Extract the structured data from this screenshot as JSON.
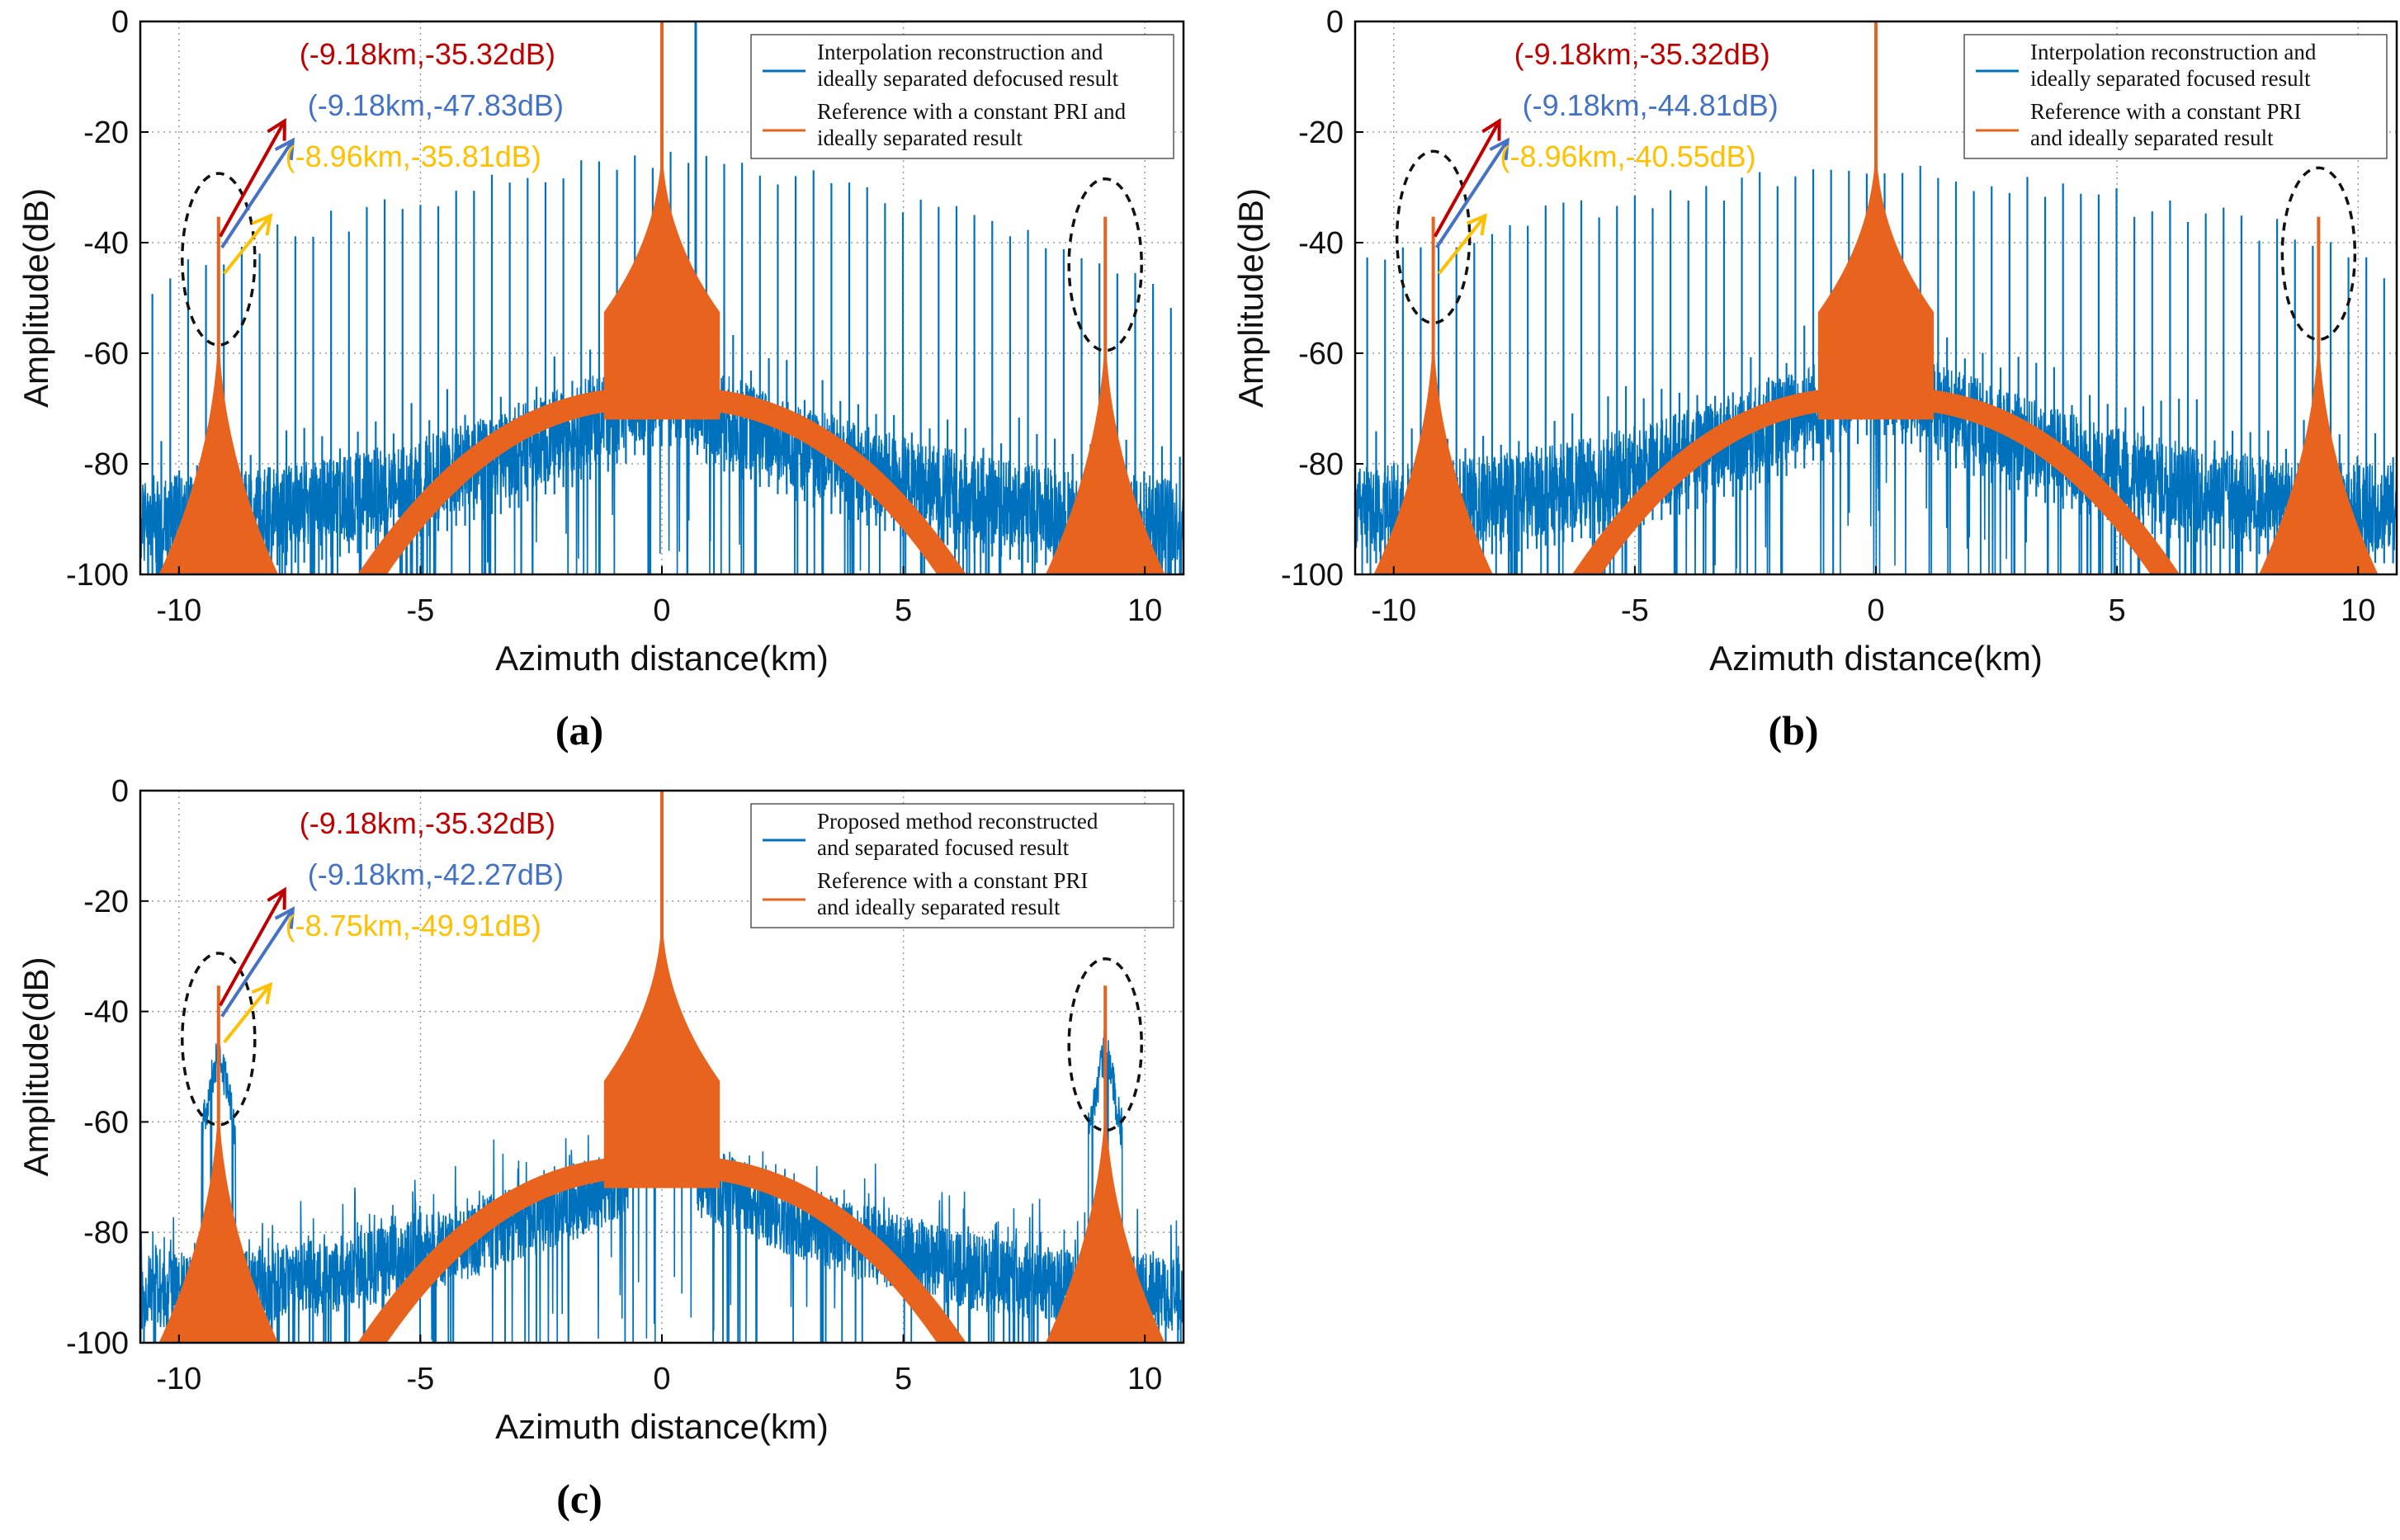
{
  "figure": {
    "background": "#ffffff",
    "colors": {
      "interp": "#0072BD",
      "ref": "#E8641E",
      "red_arrow": "#C00000",
      "blue_arrow": "#4472C4",
      "yellow_arrow": "#FFC000",
      "grid": "#9a9a9a",
      "ellipse": "#111111"
    }
  },
  "chart_data": [
    {
      "id": "a",
      "type": "line",
      "caption": "(a)",
      "xlabel": "Azimuth distance(km)",
      "ylabel": "Amplitude(dB)",
      "xlim": [
        -10.8,
        10.8
      ],
      "ylim": [
        -100,
        0
      ],
      "xticks": [
        -10,
        -5,
        0,
        5,
        10
      ],
      "xtick_labels": [
        "-10",
        "-5",
        "0",
        "5",
        "10"
      ],
      "yticks": [
        0,
        -20,
        -40,
        -60,
        -80,
        -100
      ],
      "ytick_labels": [
        "0",
        "-20",
        "-40",
        "-60",
        "-80",
        "-100"
      ],
      "grid": true,
      "legend_position": "top-right",
      "series": [
        {
          "name": "Interpolation reconstruction and ideally separated defocused result",
          "legend_lines": [
            "Interpolation reconstruction and",
            "ideally separated defocused result"
          ],
          "color": "#0072BD",
          "style": "noisy-spurious",
          "floor_edge_db": -88,
          "floor_center_db": -64,
          "spur_spacing_km": 0.37,
          "spur_envelope_edge_db": -52,
          "spur_envelope_center_db": -22,
          "extra_spike_x_km": 0.7,
          "extra_spike_db": 0,
          "side_peak_db": -47.83
        },
        {
          "name": "Reference with a constant PRI and ideally separated result",
          "legend_lines": [
            "Reference with a constant PRI and",
            "ideally separated result"
          ],
          "color": "#E8641E",
          "main_peak": [
            0,
            0
          ],
          "side_peaks": [
            [
              -9.18,
              -35.32
            ],
            [
              9.18,
              -35.32
            ]
          ]
        }
      ],
      "annotations": [
        {
          "text": "(-9.18km,-35.32dB)",
          "color": "#C00000",
          "x": -9.18,
          "y": -35.32
        },
        {
          "text": "(-9.18km,-47.83dB)",
          "color": "#4472C4",
          "x": -9.18,
          "y": -47.83
        },
        {
          "text": "(-8.96km,-35.81dB)",
          "color": "#FFC000",
          "x": -8.96,
          "y": -35.81
        }
      ],
      "ellipses": [
        [
          -9.18,
          -43
        ],
        [
          9.18,
          -44
        ]
      ]
    },
    {
      "id": "b",
      "type": "line",
      "caption": "(b)",
      "xlabel": "Azimuth distance(km)",
      "ylabel": "Amplitude(dB)",
      "xlim": [
        -10.8,
        10.8
      ],
      "ylim": [
        -100,
        0
      ],
      "xticks": [
        -10,
        -5,
        0,
        5,
        10
      ],
      "xtick_labels": [
        "-10",
        "-5",
        "0",
        "5",
        "10"
      ],
      "yticks": [
        0,
        -20,
        -40,
        -60,
        -80,
        -100
      ],
      "ytick_labels": [
        "0",
        "-20",
        "-40",
        "-60",
        "-80",
        "-100"
      ],
      "grid": true,
      "legend_position": "top-right",
      "series": [
        {
          "name": "Interpolation reconstruction and ideally separated focused result",
          "legend_lines": [
            "Interpolation reconstruction and",
            "ideally separated focused result"
          ],
          "color": "#0072BD",
          "style": "noisy-spurious",
          "floor_edge_db": -86,
          "floor_center_db": -62,
          "spur_spacing_km": 0.37,
          "spur_envelope_edge_db": -46,
          "spur_envelope_center_db": -24,
          "side_peak_db": -44.81
        },
        {
          "name": "Reference with a constant PRI and ideally separated result",
          "legend_lines": [
            "Reference with a constant PRI",
            "and ideally separated result"
          ],
          "color": "#E8641E",
          "main_peak": [
            0,
            0
          ],
          "side_peaks": [
            [
              -9.18,
              -35.32
            ],
            [
              9.18,
              -35.32
            ]
          ]
        }
      ],
      "annotations": [
        {
          "text": "(-9.18km,-35.32dB)",
          "color": "#C00000",
          "x": -9.18,
          "y": -35.32
        },
        {
          "text": "(-9.18km,-44.81dB)",
          "color": "#4472C4",
          "x": -9.18,
          "y": -44.81
        },
        {
          "text": "(-8.96km,-40.55dB)",
          "color": "#FFC000",
          "x": -8.96,
          "y": -40.55
        }
      ],
      "ellipses": [
        [
          -9.18,
          -39
        ],
        [
          9.18,
          -42
        ]
      ]
    },
    {
      "id": "c",
      "type": "line",
      "caption": "(c)",
      "xlabel": "Azimuth distance(km)",
      "ylabel": "Amplitude(dB)",
      "xlim": [
        -10.8,
        10.8
      ],
      "ylim": [
        -100,
        0
      ],
      "xticks": [
        -10,
        -5,
        0,
        5,
        10
      ],
      "xtick_labels": [
        "-10",
        "-5",
        "0",
        "5",
        "10"
      ],
      "yticks": [
        0,
        -20,
        -40,
        -60,
        -80,
        -100
      ],
      "ytick_labels": [
        "0",
        "-20",
        "-40",
        "-60",
        "-80",
        "-100"
      ],
      "grid": true,
      "legend_position": "top-right",
      "series": [
        {
          "name": "Proposed method reconstructed and separated focused result",
          "legend_lines": [
            "Proposed method reconstructed",
            "and separated focused result"
          ],
          "color": "#0072BD",
          "style": "noisy-dense",
          "floor_edge_db": -92,
          "floor_center_db": -68,
          "center_peak_db": -37,
          "side_peak_db": -42.27
        },
        {
          "name": "Reference with a constant PRI and ideally separated result",
          "legend_lines": [
            "Reference with a constant PRI",
            "and ideally separated result"
          ],
          "color": "#E8641E",
          "main_peak": [
            0,
            0
          ],
          "side_peaks": [
            [
              -9.18,
              -35.32
            ],
            [
              9.18,
              -35.32
            ]
          ]
        }
      ],
      "annotations": [
        {
          "text": "(-9.18km,-35.32dB)",
          "color": "#C00000",
          "x": -9.18,
          "y": -35.32
        },
        {
          "text": "(-9.18km,-42.27dB)",
          "color": "#4472C4",
          "x": -9.18,
          "y": -42.27
        },
        {
          "text": "(-8.75km,-49.91dB)",
          "color": "#FFC000",
          "x": -8.75,
          "y": -49.91
        }
      ],
      "ellipses": [
        [
          -9.18,
          -45
        ],
        [
          9.18,
          -46
        ]
      ]
    }
  ]
}
